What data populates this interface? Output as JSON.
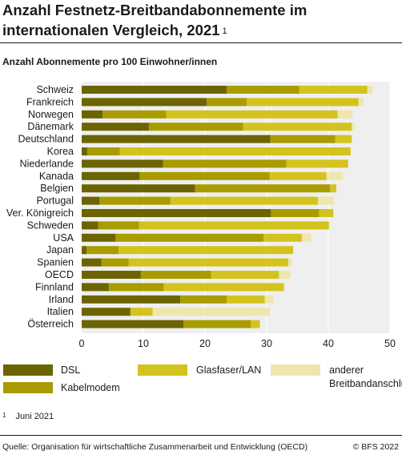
{
  "header": {
    "title_line1": "Anzahl Festnetz-Breitbandabonnemente im",
    "title_line2": "internationalen Vergleich, 2021",
    "title_sup": "1",
    "subtitle": "Anzahl Abonnemente pro 100 Einwohner/innen"
  },
  "chart_data": {
    "type": "bar",
    "orientation": "horizontal",
    "stacked": true,
    "categories": [
      "Schweiz",
      "Frankreich",
      "Norwegen",
      "Dänemark",
      "Deutschland",
      "Korea",
      "Niederlande",
      "Kanada",
      "Belgien",
      "Portugal",
      "Ver. Königreich",
      "Schweden",
      "USA",
      "Japan",
      "Spanien",
      "OECD",
      "Finnland",
      "Irland",
      "Italien",
      "Österreich"
    ],
    "series": [
      {
        "name": "DSL",
        "color": "#6b6400",
        "values": [
          23.5,
          20.3,
          3.4,
          10.9,
          30.6,
          0.9,
          13.2,
          9.4,
          18.4,
          2.9,
          30.7,
          2.7,
          5.5,
          0.8,
          3.2,
          9.6,
          4.4,
          16.0,
          7.9,
          16.5
        ]
      },
      {
        "name": "Kabelmodem",
        "color": "#a89c00",
        "values": [
          11.8,
          6.5,
          10.3,
          15.3,
          10.5,
          5.3,
          20.0,
          21.1,
          21.9,
          11.5,
          7.8,
          6.6,
          24.0,
          5.2,
          4.4,
          11.4,
          8.9,
          7.5,
          0.0,
          10.9
        ]
      },
      {
        "name": "Glasfaser/LAN",
        "color": "#d4c31c",
        "values": [
          11.0,
          18.1,
          27.8,
          17.6,
          2.7,
          37.4,
          10.0,
          9.2,
          1.0,
          23.9,
          2.3,
          30.8,
          6.2,
          28.3,
          25.9,
          11.0,
          19.5,
          6.2,
          3.6,
          1.5
        ]
      },
      {
        "name": "anderer Breitbandanschluss",
        "color": "#efe6ad",
        "values": [
          0.9,
          0.8,
          2.4,
          0.5,
          0.0,
          0.0,
          0.0,
          2.7,
          0.0,
          2.6,
          0.1,
          0.0,
          1.5,
          0.0,
          0.6,
          1.9,
          0.1,
          1.4,
          19.0,
          0.0
        ]
      }
    ],
    "xlim": [
      0,
      50
    ],
    "xticks": [
      0,
      10,
      20,
      30,
      40,
      50
    ],
    "xlabel": "",
    "ylabel": "",
    "grid": true,
    "legend_position": "bottom"
  },
  "legend": {
    "dsl": "DSL",
    "cable": "Kabelmodem",
    "fiber": "Glasfaser/LAN",
    "other_line1": "anderer",
    "other_line2": "Breitbandanschluss",
    "colors": {
      "dsl": "#6b6400",
      "cable": "#a89c00",
      "fiber": "#d4c31c",
      "other": "#efe6ad"
    }
  },
  "footnote": {
    "number": "1",
    "text": "Juni 2021"
  },
  "footer": {
    "source": "Quelle: Organisation für wirtschaftliche Zusammenarbeit und Entwicklung (OECD)",
    "copyright": "© BFS 2022"
  }
}
